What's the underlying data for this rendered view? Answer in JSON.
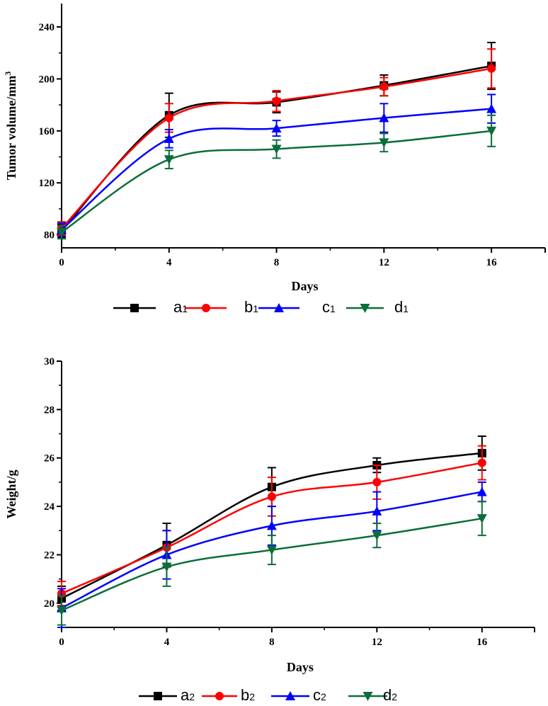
{
  "chart_data": [
    {
      "type": "line",
      "xlabel": "Days",
      "ylabel": "Tumor volume/mm",
      "ylabel_superscript": "3",
      "x": [
        0,
        4,
        8,
        12,
        16
      ],
      "xticks": [
        "0",
        "4",
        "8",
        "12",
        "16"
      ],
      "xlim": [
        0,
        18
      ],
      "yticks": [
        "80",
        "120",
        "160",
        "200",
        "240"
      ],
      "ylim": [
        70,
        258
      ],
      "series": [
        {
          "name": "a",
          "sub": "1",
          "color": "#000000",
          "marker": "square",
          "values": [
            83,
            172,
            182,
            195,
            210
          ],
          "errors": [
            5,
            17,
            8,
            8,
            18
          ]
        },
        {
          "name": "b",
          "sub": "1",
          "color": "#ff0000",
          "marker": "circle",
          "values": [
            85,
            170,
            183,
            194,
            208
          ],
          "errors": [
            5,
            11,
            8,
            7,
            15
          ]
        },
        {
          "name": "c",
          "sub": "1",
          "color": "#0000ff",
          "marker": "triangle-up",
          "values": [
            84,
            154,
            162,
            170,
            177
          ],
          "errors": [
            5,
            7,
            6,
            11,
            11
          ]
        },
        {
          "name": "d",
          "sub": "1",
          "color": "#0b6e3a",
          "marker": "triangle-down",
          "values": [
            82,
            138,
            146,
            151,
            160
          ],
          "errors": [
            5,
            7,
            7,
            7,
            12
          ]
        }
      ]
    },
    {
      "type": "line",
      "xlabel": "Days",
      "ylabel": "Weight/g",
      "x": [
        0,
        4,
        8,
        12,
        16
      ],
      "xticks": [
        "0",
        "4",
        "8",
        "12",
        "16"
      ],
      "xlim": [
        0,
        18
      ],
      "yticks": [
        "20",
        "22",
        "24",
        "26",
        "28",
        "30"
      ],
      "ylim": [
        19,
        30
      ],
      "series": [
        {
          "name": "a",
          "sub": "2",
          "color": "#000000",
          "marker": "square",
          "values": [
            20.2,
            22.4,
            24.8,
            25.7,
            26.2
          ],
          "errors": [
            0.5,
            0.9,
            0.8,
            0.3,
            0.7
          ]
        },
        {
          "name": "b",
          "sub": "2",
          "color": "#ff0000",
          "marker": "circle",
          "values": [
            20.4,
            22.3,
            24.4,
            25.0,
            25.8
          ],
          "errors": [
            0.5,
            0.7,
            0.8,
            0.7,
            0.7
          ]
        },
        {
          "name": "c",
          "sub": "2",
          "color": "#0000ff",
          "marker": "triangle-up",
          "values": [
            19.8,
            22.0,
            23.2,
            23.8,
            24.6
          ],
          "errors": [
            0.8,
            1.0,
            0.8,
            0.8,
            0.4
          ]
        },
        {
          "name": "d",
          "sub": "2",
          "color": "#0b6e3a",
          "marker": "triangle-down",
          "values": [
            19.7,
            21.5,
            22.2,
            22.8,
            23.5
          ],
          "errors": [
            0.6,
            0.8,
            0.6,
            0.5,
            0.7
          ]
        }
      ]
    }
  ]
}
